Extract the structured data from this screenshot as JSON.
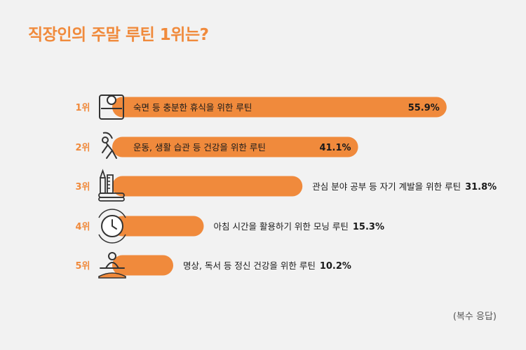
{
  "title": "직장인의 주말 루틴 1위는?",
  "note": "(복수 응답)",
  "colors": {
    "accent": "#f08a3c",
    "icon": "#333333",
    "text": "#222222"
  },
  "chart_data": {
    "type": "bar",
    "orientation": "horizontal",
    "title": "직장인의 주말 루틴 1위는?",
    "categories": [
      "숙면 등 충분한 휴식을 위한 루틴",
      "운동, 생활 습관 등 건강을 위한 루틴",
      "관심 분야 공부 등 자기 계발을 위한 루틴",
      "아침 시간을 활용하기 위한 모닝 루틴",
      "명상, 독서 등 정신 건강을 위한 루틴"
    ],
    "ranks": [
      "1위",
      "2위",
      "3위",
      "4위",
      "5위"
    ],
    "values": [
      55.9,
      41.1,
      31.8,
      15.3,
      10.2
    ],
    "value_labels": [
      "55.9%",
      "41.1%",
      "31.8%",
      "15.3%",
      "10.2%"
    ],
    "icons": [
      "bed-icon",
      "stretching-person-icon",
      "ruler-pencil-books-icon",
      "clock-icon",
      "meditation-icon"
    ],
    "unit": "%",
    "grid": false,
    "legend": "none"
  }
}
